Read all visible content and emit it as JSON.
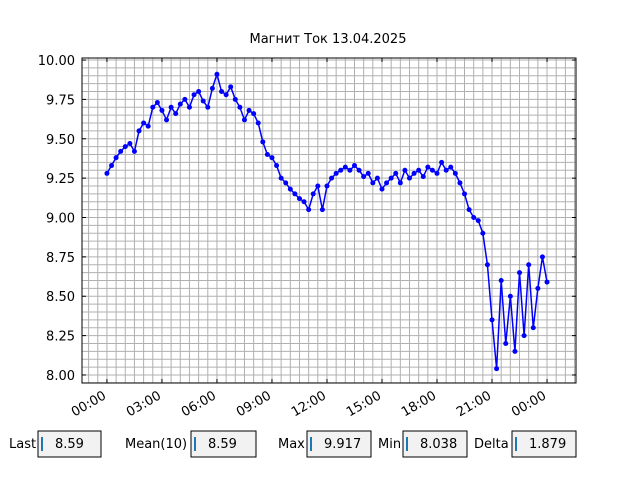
{
  "chart_data": {
    "type": "line",
    "title": "Магнит Ток 13.04.2025",
    "x": [
      0,
      0.25,
      0.5,
      0.75,
      1,
      1.25,
      1.5,
      1.75,
      2,
      2.25,
      2.5,
      2.75,
      3,
      3.25,
      3.5,
      3.75,
      4,
      4.25,
      4.5,
      4.75,
      5,
      5.25,
      5.5,
      5.75,
      6,
      6.25,
      6.5,
      6.75,
      7,
      7.25,
      7.5,
      7.75,
      8,
      8.25,
      8.5,
      8.75,
      9,
      9.25,
      9.5,
      9.75,
      10,
      10.25,
      10.5,
      10.75,
      11,
      11.25,
      11.5,
      11.75,
      12,
      12.25,
      12.5,
      12.75,
      13,
      13.25,
      13.5,
      13.75,
      14,
      14.25,
      14.5,
      14.75,
      15,
      15.25,
      15.5,
      15.75,
      16,
      16.25,
      16.5,
      16.75,
      17,
      17.25,
      17.5,
      17.75,
      18,
      18.25,
      18.5,
      18.75,
      19,
      19.25,
      19.5,
      19.75,
      20,
      20.25,
      20.5,
      20.75,
      21,
      21.25,
      21.5,
      21.75,
      22,
      22.25,
      22.5,
      22.75,
      23,
      23.25,
      23.5,
      23.75,
      24
    ],
    "series": [
      {
        "color": "#0000ff",
        "values": [
          9.28,
          9.33,
          9.38,
          9.42,
          9.45,
          9.47,
          9.42,
          9.55,
          9.6,
          9.58,
          9.7,
          9.73,
          9.68,
          9.62,
          9.7,
          9.66,
          9.72,
          9.75,
          9.7,
          9.78,
          9.8,
          9.74,
          9.7,
          9.82,
          9.91,
          9.8,
          9.78,
          9.83,
          9.75,
          9.7,
          9.62,
          9.68,
          9.66,
          9.6,
          9.48,
          9.4,
          9.38,
          9.33,
          9.25,
          9.22,
          9.18,
          9.15,
          9.12,
          9.1,
          9.05,
          9.15,
          9.2,
          9.05,
          9.2,
          9.25,
          9.28,
          9.3,
          9.32,
          9.3,
          9.33,
          9.3,
          9.26,
          9.28,
          9.22,
          9.25,
          9.18,
          9.22,
          9.25,
          9.28,
          9.22,
          9.3,
          9.25,
          9.28,
          9.3,
          9.26,
          9.32,
          9.3,
          9.28,
          9.35,
          9.3,
          9.32,
          9.28,
          9.22,
          9.15,
          9.05,
          9.0,
          8.98,
          8.9,
          8.7,
          8.35,
          8.04,
          8.6,
          8.2,
          8.5,
          8.15,
          8.65,
          8.25,
          8.7,
          8.3,
          8.55,
          8.75,
          8.59
        ]
      }
    ],
    "xlim": [
      -1.36,
      25.58
    ],
    "ylim": [
      7.949,
      10.013
    ],
    "xticks": [
      {
        "value": 0,
        "label": "00:00"
      },
      {
        "value": 3,
        "label": "03:00"
      },
      {
        "value": 6,
        "label": "06:00"
      },
      {
        "value": 9,
        "label": "09:00"
      },
      {
        "value": 12,
        "label": "12:00"
      },
      {
        "value": 15,
        "label": "15:00"
      },
      {
        "value": 18,
        "label": "18:00"
      },
      {
        "value": 21,
        "label": "21:00"
      },
      {
        "value": 24,
        "label": "00:00"
      }
    ],
    "yticks": [
      {
        "value": 8,
        "label": "8.00"
      },
      {
        "value": 8.25,
        "label": "8.25"
      },
      {
        "value": 8.5,
        "label": "8.50"
      },
      {
        "value": 8.75,
        "label": "8.75"
      },
      {
        "value": 9,
        "label": "9.00"
      },
      {
        "value": 9.25,
        "label": "9.25"
      },
      {
        "value": 9.5,
        "label": "9.50"
      },
      {
        "value": 9.75,
        "label": "9.75"
      },
      {
        "value": 10,
        "label": "10.00"
      }
    ],
    "xminor": [
      -1,
      -0.5,
      0,
      0.5,
      1,
      1.5,
      2,
      2.5,
      3,
      3.5,
      4,
      4.5,
      5,
      5.5,
      6,
      6.5,
      7,
      7.5,
      8,
      8.5,
      9,
      9.5,
      10,
      10.5,
      11,
      11.5,
      12,
      12.5,
      13,
      13.5,
      14,
      14.5,
      15,
      15.5,
      16,
      16.5,
      17,
      17.5,
      18,
      18.5,
      19,
      19.5,
      20,
      20.5,
      21,
      21.5,
      22,
      22.5,
      23,
      23.5,
      24,
      24.5,
      25,
      25.5
    ],
    "yminor": [
      7.95,
      8,
      8.05,
      8.1,
      8.15,
      8.2,
      8.25,
      8.3,
      8.35,
      8.4,
      8.45,
      8.5,
      8.55,
      8.6,
      8.65,
      8.7,
      8.75,
      8.8,
      8.85,
      8.9,
      8.95,
      9,
      9.05,
      9.1,
      9.15,
      9.2,
      9.25,
      9.3,
      9.35,
      9.4,
      9.45,
      9.5,
      9.55,
      9.6,
      9.65,
      9.7,
      9.75,
      9.8,
      9.85,
      9.9,
      9.95,
      10
    ],
    "grid": true
  },
  "stats": [
    {
      "label": "Last",
      "value": "8.59"
    },
    {
      "label": "Mean(10)",
      "value": "8.59"
    },
    {
      "label": "Max",
      "value": "9.917"
    },
    {
      "label": "Min",
      "value": "8.038"
    },
    {
      "label": "Delta",
      "value": "1.879"
    }
  ]
}
